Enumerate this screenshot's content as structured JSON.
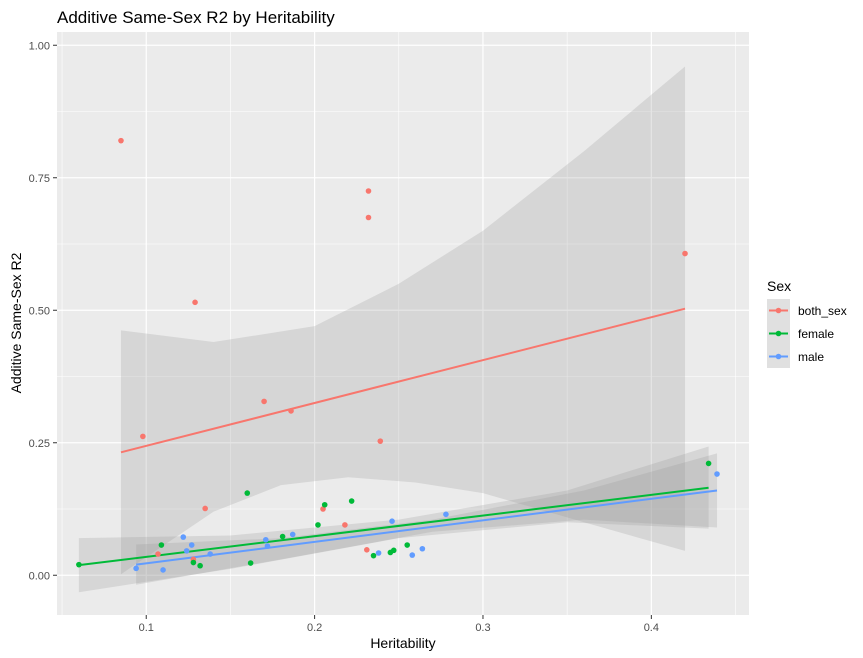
{
  "chart_data": {
    "type": "scatter",
    "title": "Additive Same-Sex R2 by Heritability",
    "xlabel": "Heritability",
    "ylabel": "Additive Same-Sex R2",
    "xlim": [
      0.047,
      0.458
    ],
    "ylim": [
      -0.075,
      1.025
    ],
    "xticks": [
      0.1,
      0.2,
      0.3,
      0.4
    ],
    "xtick_labels": [
      "0.1",
      "0.2",
      "0.3",
      "0.4"
    ],
    "yticks": [
      0,
      0.25,
      0.5,
      0.75,
      1.0
    ],
    "ytick_labels": [
      "0.00",
      "0.25",
      "0.50",
      "0.75",
      "1.00"
    ],
    "grid": true,
    "legend": {
      "title": "Sex",
      "position": "right",
      "entries": [
        "both_sex",
        "female",
        "male"
      ]
    },
    "series": [
      {
        "name": "both_sex",
        "color": "#F8766D",
        "points": [
          [
            0.085,
            0.82
          ],
          [
            0.098,
            0.262
          ],
          [
            0.107,
            0.04
          ],
          [
            0.128,
            0.03
          ],
          [
            0.129,
            0.515
          ],
          [
            0.135,
            0.126
          ],
          [
            0.17,
            0.328
          ],
          [
            0.186,
            0.31
          ],
          [
            0.205,
            0.125
          ],
          [
            0.218,
            0.095
          ],
          [
            0.231,
            0.048
          ],
          [
            0.232,
            0.725
          ],
          [
            0.232,
            0.675
          ],
          [
            0.239,
            0.253
          ],
          [
            0.42,
            0.607
          ]
        ],
        "fit": [
          [
            0.085,
            0.232
          ],
          [
            0.42,
            0.503
          ]
        ],
        "band_upper": [
          [
            0.085,
            0.462
          ],
          [
            0.14,
            0.44
          ],
          [
            0.2,
            0.47
          ],
          [
            0.25,
            0.55
          ],
          [
            0.3,
            0.65
          ],
          [
            0.36,
            0.8
          ],
          [
            0.42,
            0.96
          ]
        ],
        "band_lower": [
          [
            0.085,
            0.002
          ],
          [
            0.14,
            0.12
          ],
          [
            0.18,
            0.17
          ],
          [
            0.22,
            0.185
          ],
          [
            0.26,
            0.175
          ],
          [
            0.3,
            0.155
          ],
          [
            0.36,
            0.1
          ],
          [
            0.42,
            0.046
          ]
        ]
      },
      {
        "name": "female",
        "color": "#00BA38",
        "points": [
          [
            0.06,
            0.02
          ],
          [
            0.109,
            0.057
          ],
          [
            0.128,
            0.024
          ],
          [
            0.132,
            0.018
          ],
          [
            0.16,
            0.155
          ],
          [
            0.162,
            0.023
          ],
          [
            0.181,
            0.073
          ],
          [
            0.202,
            0.095
          ],
          [
            0.206,
            0.133
          ],
          [
            0.222,
            0.14
          ],
          [
            0.235,
            0.037
          ],
          [
            0.245,
            0.043
          ],
          [
            0.247,
            0.047
          ],
          [
            0.255,
            0.057
          ],
          [
            0.434,
            0.211
          ]
        ],
        "fit": [
          [
            0.06,
            0.019
          ],
          [
            0.434,
            0.165
          ]
        ],
        "band_upper": [
          [
            0.06,
            0.07
          ],
          [
            0.15,
            0.075
          ],
          [
            0.25,
            0.105
          ],
          [
            0.35,
            0.16
          ],
          [
            0.434,
            0.243
          ]
        ],
        "band_lower": [
          [
            0.06,
            -0.032
          ],
          [
            0.15,
            0.012
          ],
          [
            0.25,
            0.07
          ],
          [
            0.35,
            0.1
          ],
          [
            0.434,
            0.088
          ]
        ]
      },
      {
        "name": "male",
        "color": "#619CFF",
        "points": [
          [
            0.094,
            0.013
          ],
          [
            0.11,
            0.01
          ],
          [
            0.122,
            0.072
          ],
          [
            0.124,
            0.046
          ],
          [
            0.127,
            0.057
          ],
          [
            0.138,
            0.04
          ],
          [
            0.171,
            0.067
          ],
          [
            0.172,
            0.055
          ],
          [
            0.187,
            0.077
          ],
          [
            0.238,
            0.042
          ],
          [
            0.246,
            0.102
          ],
          [
            0.258,
            0.038
          ],
          [
            0.264,
            0.05
          ],
          [
            0.278,
            0.115
          ],
          [
            0.439,
            0.191
          ]
        ],
        "fit": [
          [
            0.094,
            0.02
          ],
          [
            0.439,
            0.16
          ]
        ],
        "band_upper": [
          [
            0.094,
            0.058
          ],
          [
            0.18,
            0.07
          ],
          [
            0.27,
            0.105
          ],
          [
            0.36,
            0.16
          ],
          [
            0.439,
            0.23
          ]
        ],
        "band_lower": [
          [
            0.094,
            -0.018
          ],
          [
            0.18,
            0.03
          ],
          [
            0.27,
            0.082
          ],
          [
            0.36,
            0.105
          ],
          [
            0.439,
            0.09
          ]
        ]
      }
    ]
  }
}
